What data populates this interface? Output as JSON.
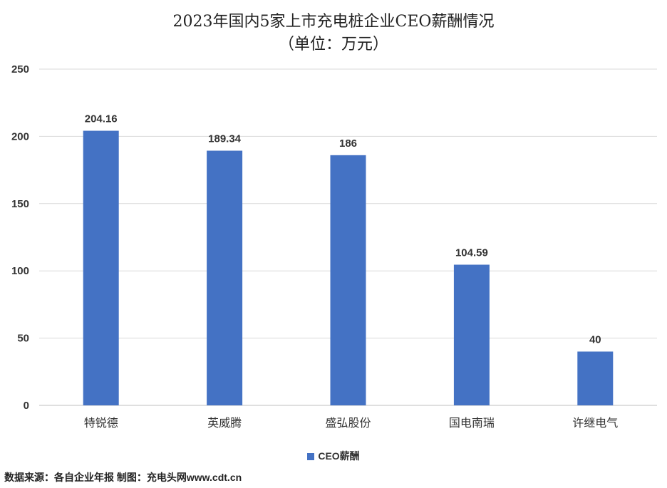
{
  "chart_data": {
    "type": "bar",
    "title": "2023年国内5家上市充电桩企业CEO薪酬情况",
    "subtitle": "（单位：万元）",
    "categories": [
      "特锐德",
      "英威腾",
      "盛弘股份",
      "国电南瑞",
      "许继电气"
    ],
    "series": [
      {
        "name": "CEO薪酬",
        "values": [
          204.16,
          189.34,
          186,
          104.59,
          40
        ],
        "data_labels": [
          "204.16",
          "189.34",
          "186",
          "104.59",
          "40"
        ],
        "color": "#4472C4"
      }
    ],
    "ylim": [
      0,
      250
    ],
    "yticks": [
      0,
      50,
      100,
      150,
      200,
      250
    ],
    "ytick_labels": [
      "0",
      "50",
      "100",
      "150",
      "200",
      "250"
    ],
    "grid": true,
    "legend": "bottom",
    "gridline_color": "#d9d9d9"
  },
  "footer": {
    "source": "数据来源：各自企业年报 制图：充电头网www.cdt.cn"
  }
}
